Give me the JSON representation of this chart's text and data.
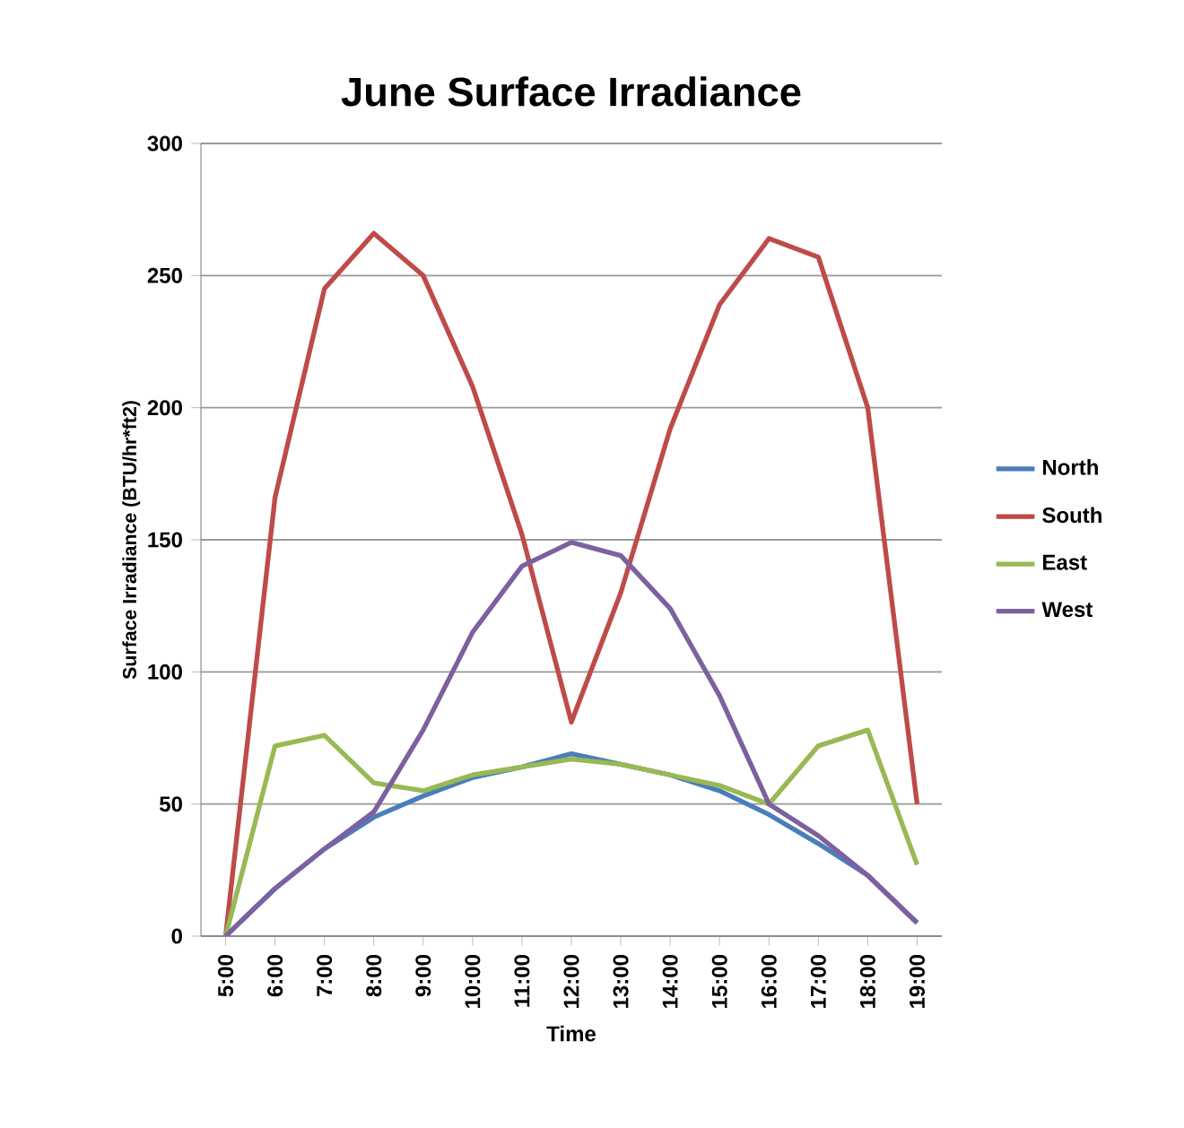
{
  "chart_data": {
    "type": "line",
    "title": "June Surface Irradiance",
    "xlabel": "Time",
    "ylabel": "Surface Irradiance (BTU/hr*ft2)",
    "categories": [
      "5:00",
      "6:00",
      "7:00",
      "8:00",
      "9:00",
      "10:00",
      "11:00",
      "12:00",
      "13:00",
      "14:00",
      "15:00",
      "16:00",
      "17:00",
      "18:00",
      "19:00"
    ],
    "series": [
      {
        "name": "North",
        "color": "#4a7ebb",
        "values": [
          0,
          18,
          33,
          45,
          53,
          60,
          64,
          69,
          65,
          61,
          55,
          46,
          35,
          23,
          5
        ]
      },
      {
        "name": "South",
        "color": "#be4b48",
        "values": [
          0,
          166,
          245,
          266,
          250,
          208,
          152,
          81,
          130,
          192,
          239,
          264,
          257,
          200,
          50
        ]
      },
      {
        "name": "East",
        "color": "#98b954",
        "values": [
          0,
          72,
          76,
          58,
          55,
          61,
          64,
          67,
          65,
          61,
          57,
          50,
          72,
          78,
          27
        ]
      },
      {
        "name": "West",
        "color": "#7d60a0",
        "values": [
          0,
          18,
          33,
          47,
          78,
          115,
          140,
          149,
          144,
          124,
          91,
          50,
          38,
          23,
          5
        ]
      }
    ],
    "ylim": [
      0,
      300
    ],
    "yticks": [
      0,
      50,
      100,
      150,
      200,
      250,
      300
    ],
    "grid": "y",
    "legend": "right"
  }
}
